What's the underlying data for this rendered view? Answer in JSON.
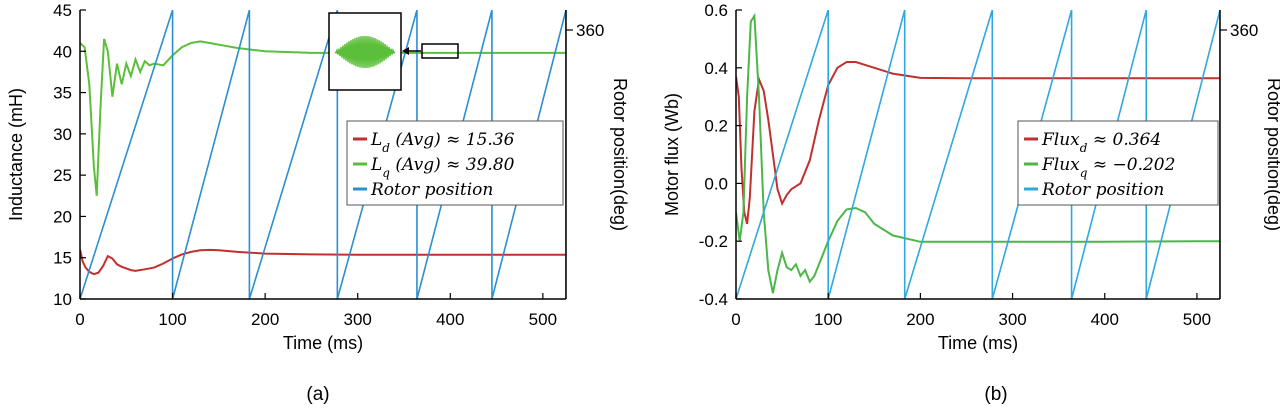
{
  "chart_data": [
    {
      "type": "line",
      "caption": "(a)",
      "xlabel": "Time (ms)",
      "ylabel": "Inductance (mH)",
      "y2label": "Rotor position(deg)",
      "xlim": [
        0,
        525
      ],
      "ylim": [
        10,
        45
      ],
      "y2lim": [
        0,
        360
      ],
      "xticks": [
        "0",
        "100",
        "200",
        "300",
        "400",
        "500"
      ],
      "yticks": [
        "10",
        "15",
        "20",
        "25",
        "30",
        "35",
        "40",
        "45"
      ],
      "y2ticks": [
        "360"
      ],
      "legend_position": "center-right",
      "inset": "zoomed view of Lq ripple",
      "series": [
        {
          "name": "Ld (Avg) ≈ 15.36",
          "sub": "d",
          "value": "15.36",
          "color": "#c0302f",
          "x": [
            0,
            3,
            6,
            10,
            15,
            20,
            25,
            30,
            35,
            40,
            45,
            50,
            55,
            60,
            70,
            80,
            90,
            100,
            110,
            120,
            130,
            140,
            150,
            170,
            200,
            250,
            300,
            350,
            400,
            450,
            500,
            525
          ],
          "y": [
            16,
            14.5,
            13.8,
            13.3,
            13.0,
            13.2,
            14.0,
            15.2,
            14.9,
            14.2,
            13.9,
            13.7,
            13.5,
            13.4,
            13.6,
            13.8,
            14.3,
            14.9,
            15.4,
            15.7,
            15.9,
            15.95,
            15.9,
            15.7,
            15.5,
            15.4,
            15.36,
            15.36,
            15.36,
            15.36,
            15.36,
            15.36
          ]
        },
        {
          "name": "Lq (Avg) ≈ 39.80",
          "sub": "q",
          "value": "39.80",
          "color": "#5cbf3a",
          "x": [
            0,
            5,
            10,
            15,
            18,
            22,
            26,
            30,
            35,
            40,
            45,
            50,
            55,
            60,
            65,
            70,
            75,
            80,
            90,
            100,
            110,
            120,
            130,
            140,
            150,
            170,
            200,
            250,
            300,
            350,
            400,
            450,
            500,
            525
          ],
          "y": [
            41,
            40.5,
            36,
            26,
            22.5,
            33,
            41.5,
            40,
            34.5,
            38.5,
            36,
            38.5,
            37,
            39,
            37.5,
            38.8,
            38.3,
            38.5,
            38.3,
            39.5,
            40.5,
            41,
            41.2,
            41,
            40.8,
            40.4,
            40,
            39.8,
            39.8,
            39.8,
            39.8,
            39.8,
            39.8,
            39.8
          ]
        },
        {
          "name": "Rotor position",
          "color": "#2b8fd0",
          "reset_times_ms": [
            100,
            183,
            278,
            364,
            445,
            525
          ],
          "units": "deg"
        }
      ]
    },
    {
      "type": "line",
      "caption": "(b)",
      "xlabel": "Time (ms)",
      "ylabel": "Motor flux (Wb)",
      "y2label": "Rotor position(deg)",
      "xlim": [
        0,
        525
      ],
      "ylim": [
        -0.4,
        0.6
      ],
      "y2lim": [
        0,
        360
      ],
      "xticks": [
        "0",
        "100",
        "200",
        "300",
        "400",
        "500"
      ],
      "yticks": [
        "-0.4",
        "-0.2",
        "0.0",
        "0.2",
        "0.4",
        "0.6"
      ],
      "y2ticks": [
        "360"
      ],
      "legend_position": "center-right",
      "series": [
        {
          "name": "Flux_d ≈ 0.364",
          "sub": "d",
          "value": "0.364",
          "color": "#c0302f",
          "x": [
            0,
            3,
            6,
            9,
            12,
            15,
            20,
            25,
            30,
            35,
            40,
            45,
            50,
            55,
            60,
            65,
            70,
            80,
            90,
            100,
            110,
            120,
            130,
            140,
            150,
            170,
            200,
            250,
            300,
            400,
            500,
            525
          ],
          "y": [
            0.37,
            0.3,
            0.05,
            -0.1,
            -0.14,
            -0.05,
            0.25,
            0.36,
            0.32,
            0.22,
            0.1,
            -0.02,
            -0.07,
            -0.04,
            -0.02,
            -0.01,
            0.0,
            0.08,
            0.22,
            0.34,
            0.4,
            0.42,
            0.42,
            0.41,
            0.4,
            0.38,
            0.365,
            0.364,
            0.364,
            0.364,
            0.364,
            0.364
          ]
        },
        {
          "name": "Flux_q ≈ −0.202",
          "sub": "q",
          "value": "−0.202",
          "color": "#4cb748",
          "x": [
            0,
            4,
            8,
            12,
            16,
            20,
            25,
            30,
            35,
            40,
            45,
            50,
            55,
            60,
            65,
            70,
            75,
            80,
            85,
            90,
            100,
            110,
            120,
            130,
            140,
            150,
            170,
            200,
            250,
            300,
            400,
            500,
            525
          ],
          "y": [
            -0.1,
            -0.2,
            -0.1,
            0.3,
            0.56,
            0.58,
            0.3,
            -0.1,
            -0.3,
            -0.38,
            -0.3,
            -0.24,
            -0.29,
            -0.3,
            -0.28,
            -0.32,
            -0.3,
            -0.34,
            -0.32,
            -0.28,
            -0.2,
            -0.13,
            -0.09,
            -0.085,
            -0.1,
            -0.14,
            -0.18,
            -0.202,
            -0.202,
            -0.202,
            -0.202,
            -0.2,
            -0.2
          ]
        },
        {
          "name": "Rotor position",
          "color": "#2fa8e0",
          "reset_times_ms": [
            100,
            183,
            278,
            364,
            445,
            525
          ],
          "units": "deg"
        }
      ]
    }
  ]
}
